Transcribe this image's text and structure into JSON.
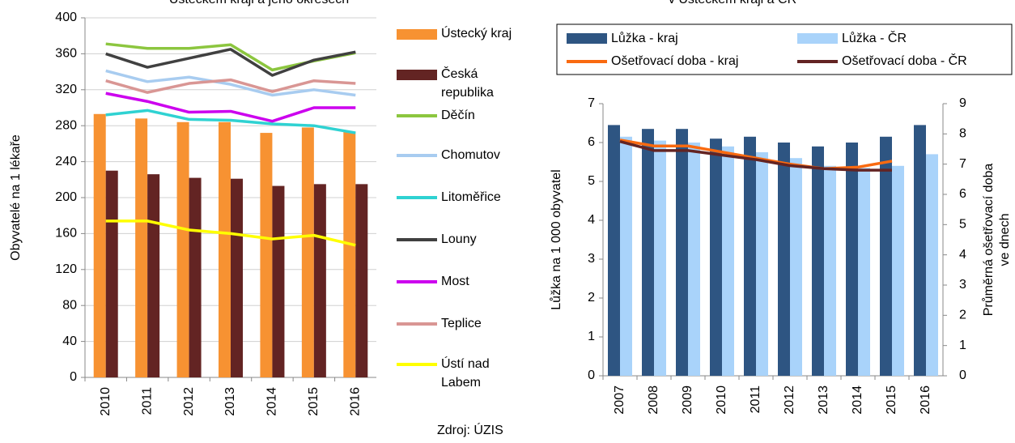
{
  "chart_data": [
    {
      "type": "combo",
      "title": "Ústeckém kraji a jeho okresech",
      "ylabel": "Obyvatelé na 1 lékaře",
      "source": "Zdroj: ÚZIS",
      "categories": [
        "2010",
        "2011",
        "2012",
        "2013",
        "2014",
        "2015",
        "2016"
      ],
      "ylim": [
        0,
        400
      ],
      "yticks": [
        0,
        40,
        80,
        120,
        160,
        200,
        240,
        280,
        320,
        360,
        400
      ],
      "grid": true,
      "series": [
        {
          "name": "Ústecký kraj",
          "type": "bar",
          "color": "#f79232",
          "values": [
            293,
            288,
            284,
            284,
            272,
            278,
            273
          ]
        },
        {
          "name": "Česká republika",
          "type": "bar",
          "color": "#632423",
          "values": [
            230,
            226,
            222,
            221,
            213,
            215,
            215
          ]
        },
        {
          "name": "Děčín",
          "type": "line",
          "color": "#8cc63f",
          "values": [
            371,
            366,
            366,
            370,
            342,
            352,
            361
          ]
        },
        {
          "name": "Chomutov",
          "type": "line",
          "color": "#a8ccf0",
          "values": [
            341,
            329,
            334,
            326,
            314,
            320,
            314
          ]
        },
        {
          "name": "Litoměřice",
          "type": "line",
          "color": "#2fd2d2",
          "values": [
            292,
            297,
            287,
            286,
            282,
            280,
            272
          ]
        },
        {
          "name": "Louny",
          "type": "line",
          "color": "#404040",
          "values": [
            360,
            345,
            355,
            365,
            336,
            353,
            362
          ]
        },
        {
          "name": "Most",
          "type": "line",
          "color": "#cc00ee",
          "values": [
            316,
            307,
            295,
            296,
            285,
            300,
            300
          ]
        },
        {
          "name": "Teplice",
          "type": "line",
          "color": "#d99694",
          "values": [
            330,
            317,
            327,
            331,
            318,
            330,
            327
          ]
        },
        {
          "name": "Ústí nad Labem",
          "type": "line",
          "color": "#ffff00",
          "values": [
            174,
            174,
            164,
            160,
            154,
            158,
            147
          ]
        }
      ]
    },
    {
      "type": "combo",
      "title": "v Ústeckém kraji a ČR",
      "ylabel": "Lůžka na 1 000 obyvatel",
      "y2label": [
        "Průměrná ošetřovací doba",
        "ve dnech"
      ],
      "categories": [
        "2007",
        "2008",
        "2009",
        "2010",
        "2011",
        "2012",
        "2013",
        "2014",
        "2015",
        "2016"
      ],
      "ylim": [
        0,
        7
      ],
      "yticks": [
        0,
        1,
        2,
        3,
        4,
        5,
        6,
        7
      ],
      "y2lim": [
        0,
        9
      ],
      "y2ticks": [
        0,
        1,
        2,
        3,
        4,
        5,
        6,
        7,
        8,
        9
      ],
      "grid": false,
      "series": [
        {
          "name": "Lůžka - kraj",
          "type": "bar",
          "color": "#2e5582",
          "values": [
            6.45,
            6.35,
            6.35,
            6.1,
            6.15,
            6.0,
            5.9,
            6.0,
            6.15,
            6.45
          ]
        },
        {
          "name": "Lůžka - ČR",
          "type": "bar",
          "color": "#a9d3fa",
          "values": [
            6.15,
            6.05,
            6.0,
            5.9,
            5.75,
            5.6,
            5.4,
            5.35,
            5.4,
            5.7
          ]
        },
        {
          "name": "Ošetřovací doba - kraj",
          "type": "line",
          "axis": "y2",
          "color": "#f96a10",
          "values": [
            7.8,
            7.6,
            7.6,
            7.4,
            7.2,
            7.0,
            6.85,
            6.9,
            7.1,
            null
          ]
        },
        {
          "name": "Ošetřovací doba - ČR",
          "type": "line",
          "axis": "y2",
          "color": "#632423",
          "values": [
            7.75,
            7.45,
            7.45,
            7.3,
            7.15,
            6.95,
            6.85,
            6.8,
            6.8,
            null
          ]
        }
      ]
    }
  ]
}
